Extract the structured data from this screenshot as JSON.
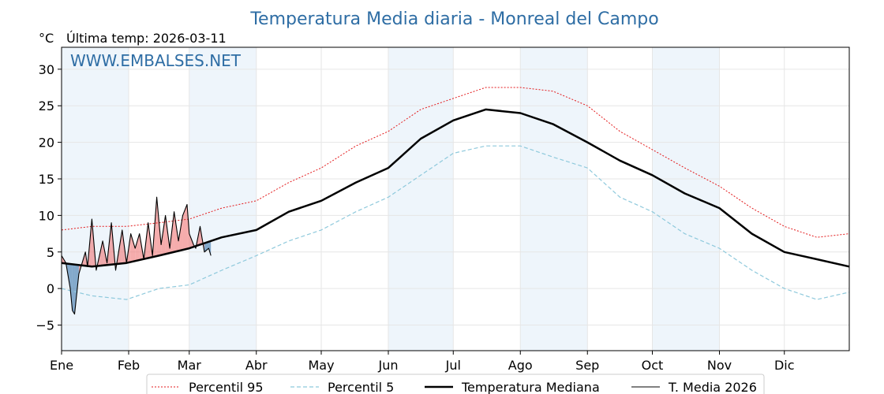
{
  "chart_data": {
    "type": "line",
    "title": "Temperatura Media diaria - Monreal del Campo",
    "unit_label": "°C",
    "subtitle": "Última temp: 2026-03-11",
    "watermark": "WWW.EMBALSES.NET",
    "ylim": [
      -8.5,
      33
    ],
    "y_ticks": [
      -5,
      0,
      5,
      10,
      15,
      20,
      25,
      30
    ],
    "x_range_days": [
      1,
      365
    ],
    "month_labels": [
      "Ene",
      "Feb",
      "Mar",
      "Abr",
      "May",
      "Jun",
      "Jul",
      "Ago",
      "Sep",
      "Oct",
      "Nov",
      "Dic"
    ],
    "month_start_days": [
      1,
      32,
      60,
      91,
      121,
      152,
      182,
      213,
      244,
      274,
      305,
      335
    ],
    "shaded_months": [
      0,
      2,
      5,
      7,
      9
    ],
    "grid": true,
    "legend_position": "bottom",
    "colors": {
      "title": "#2e6da4",
      "p95": "#e31a1c",
      "p5": "#8ec9dc",
      "median": "#000000",
      "current": "#000000",
      "fill_above": "#f08080",
      "fill_below": "#4a7fb0",
      "shade": "#eef5fb"
    },
    "series": [
      {
        "name": "Percentil 95",
        "style": "dotted-red",
        "x": [
          1,
          15,
          31,
          46,
          60,
          75,
          91,
          106,
          121,
          137,
          152,
          167,
          182,
          197,
          213,
          228,
          244,
          259,
          274,
          289,
          305,
          320,
          335,
          350,
          365
        ],
        "y": [
          8,
          8.5,
          8.5,
          9,
          9.5,
          11,
          12,
          14.5,
          16.5,
          19.5,
          21.5,
          24.5,
          26,
          27.5,
          27.5,
          27,
          25,
          21.5,
          19,
          16.5,
          14,
          11,
          8.5,
          7,
          7.5
        ]
      },
      {
        "name": "Percentil 5",
        "style": "dashed-lightblue",
        "x": [
          1,
          15,
          31,
          46,
          60,
          75,
          91,
          106,
          121,
          137,
          152,
          167,
          182,
          197,
          213,
          228,
          244,
          259,
          274,
          289,
          305,
          320,
          335,
          350,
          365
        ],
        "y": [
          0,
          -1,
          -1.5,
          0,
          0.5,
          2.5,
          4.5,
          6.5,
          8,
          10.5,
          12.5,
          15.5,
          18.5,
          19.5,
          19.5,
          18,
          16.5,
          12.5,
          10.5,
          7.5,
          5.5,
          2.5,
          0,
          -1.5,
          -0.5
        ]
      },
      {
        "name": "Temperatura Mediana",
        "style": "thick-black",
        "x": [
          1,
          15,
          31,
          46,
          60,
          75,
          91,
          106,
          121,
          137,
          152,
          167,
          182,
          197,
          213,
          228,
          244,
          259,
          274,
          289,
          305,
          320,
          335,
          350,
          365
        ],
        "y": [
          3.5,
          3,
          3.5,
          4.5,
          5.5,
          7,
          8,
          10.5,
          12,
          14.5,
          16.5,
          20.5,
          23,
          24.5,
          24,
          22.5,
          20,
          17.5,
          15.5,
          13,
          11,
          7.5,
          5,
          4,
          3
        ]
      },
      {
        "name": "T. Media 2026",
        "style": "thin-black",
        "x": [
          1,
          3,
          5,
          6,
          7,
          9,
          12,
          13,
          15,
          17,
          20,
          22,
          24,
          26,
          29,
          31,
          33,
          35,
          37,
          39,
          41,
          43,
          45,
          47,
          49,
          51,
          53,
          55,
          57,
          59,
          60,
          62,
          63,
          65,
          67,
          69,
          70
        ],
        "y": [
          4.5,
          3.5,
          0,
          -3,
          -3.5,
          2,
          5,
          3,
          9.5,
          2.5,
          6.5,
          3.5,
          9,
          2.5,
          8,
          3.5,
          7.5,
          5.5,
          7.5,
          4,
          9,
          4.5,
          12.5,
          6,
          10,
          5.5,
          10.5,
          6.5,
          10,
          11.5,
          7.5,
          6,
          5.5,
          8.5,
          5,
          5.5,
          4.5
        ]
      }
    ],
    "legend": [
      "Percentil 95",
      "Percentil 5",
      "Temperatura Mediana",
      "T. Media 2026"
    ]
  }
}
